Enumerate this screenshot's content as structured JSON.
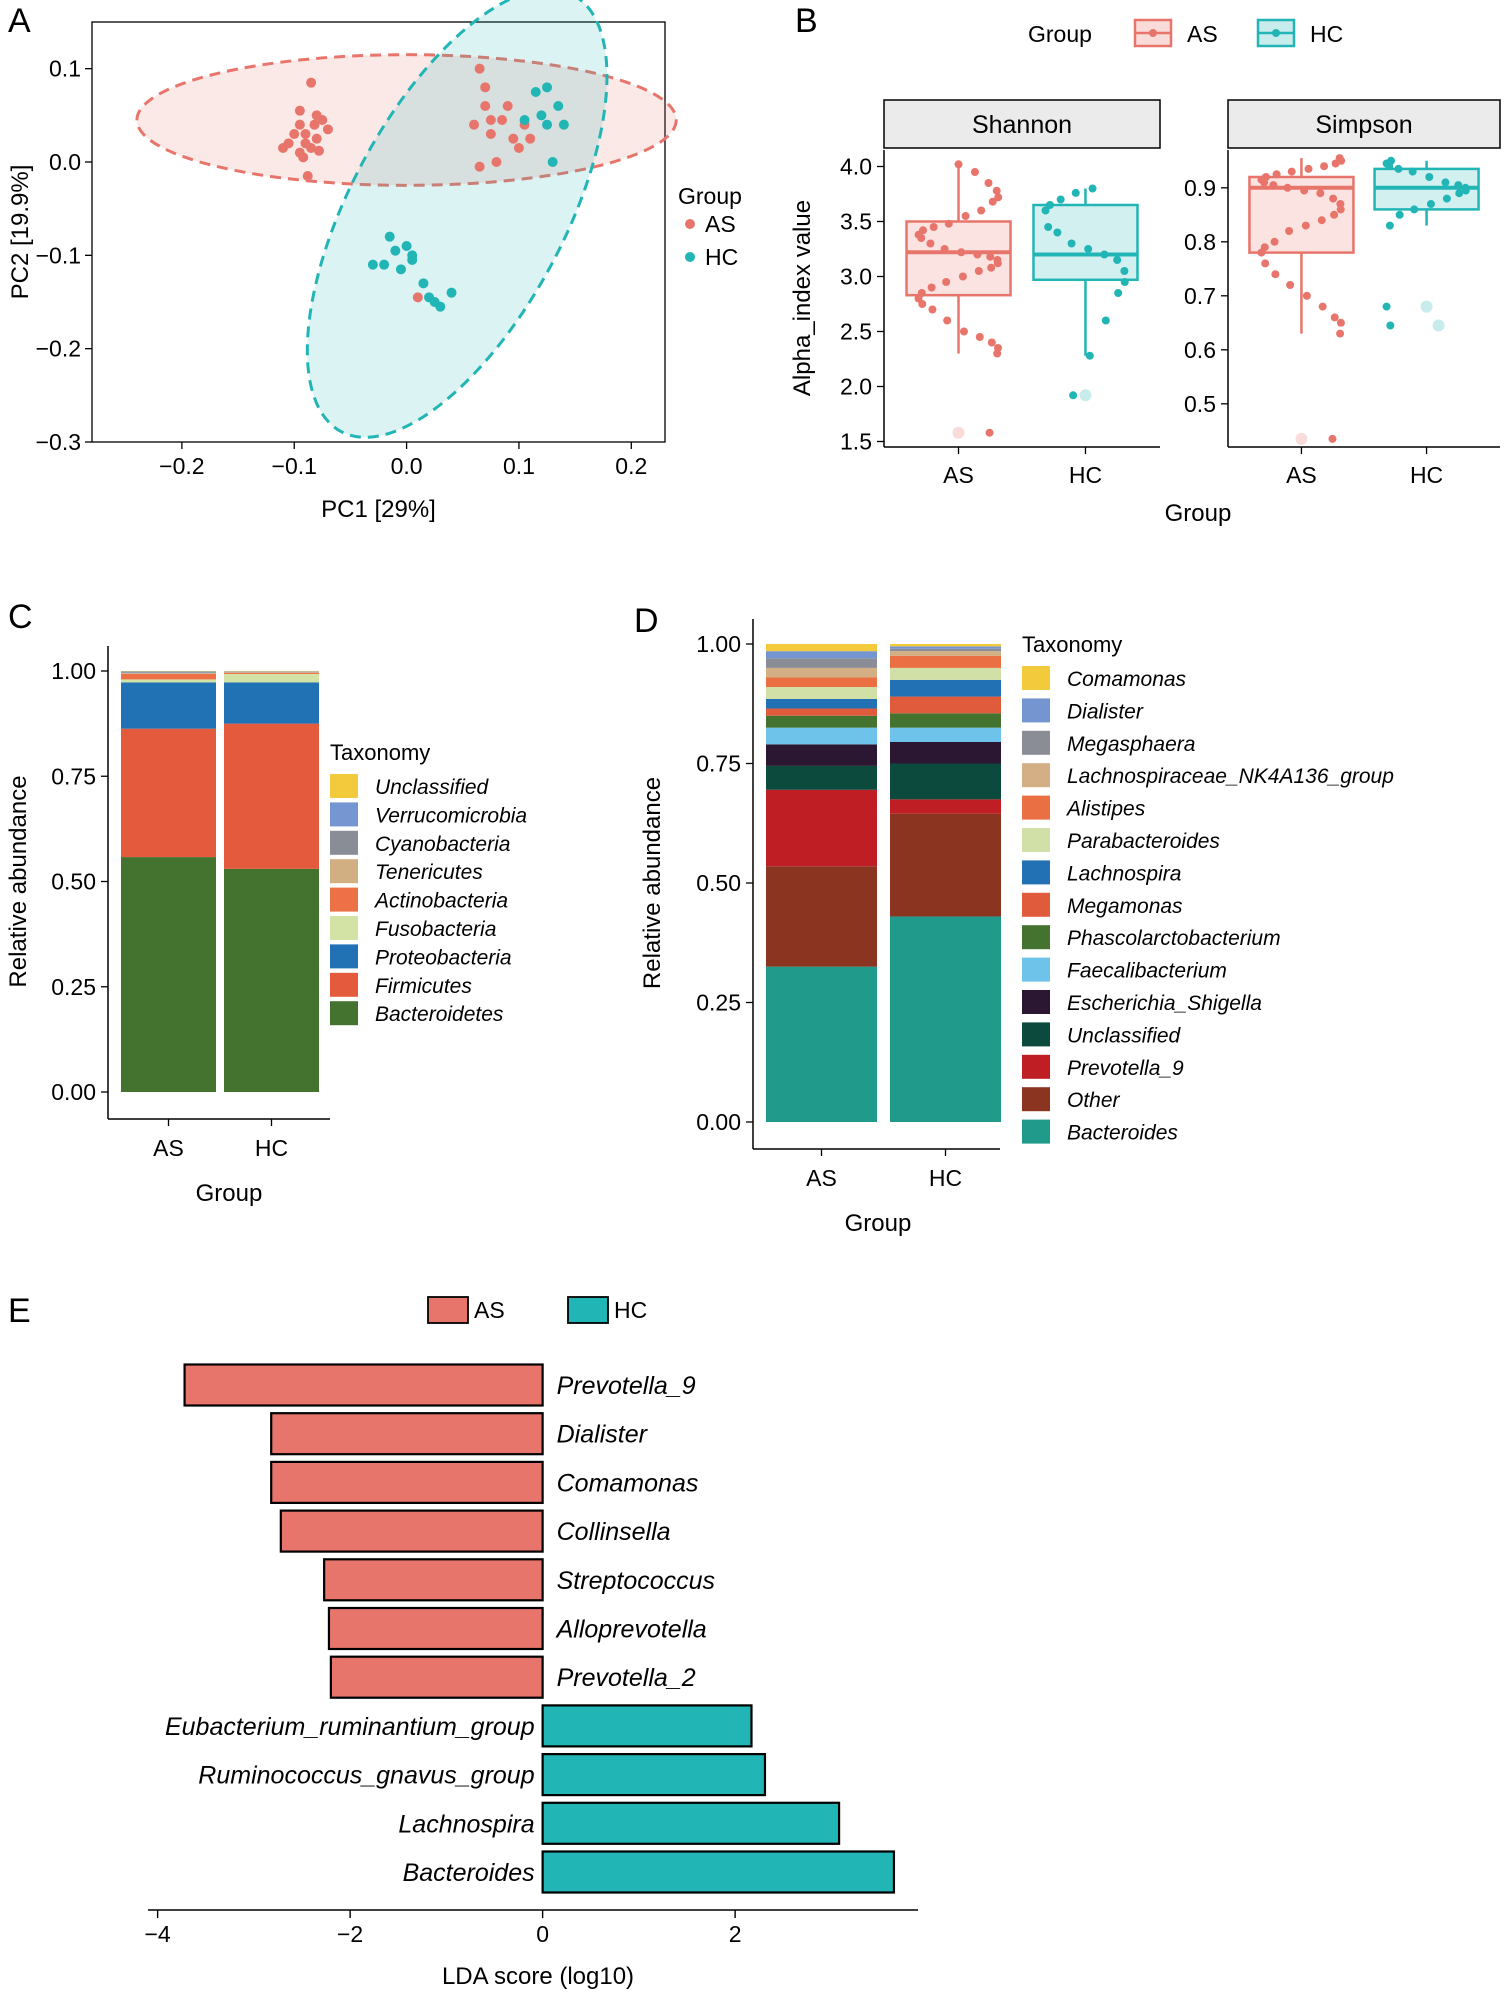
{
  "colors": {
    "AS": "#E8756B",
    "HC": "#22B5B5"
  },
  "chart_data": [
    {
      "panel": "A",
      "type": "scatter",
      "xlabel": "PC1 [29%]",
      "ylabel": "PC2 [19.9%]",
      "xlim": [
        -0.28,
        0.23
      ],
      "ylim": [
        -0.3,
        0.15
      ],
      "xticks": [
        -0.2,
        -0.1,
        0.0,
        0.1,
        0.2
      ],
      "yticks": [
        0.1,
        0.0,
        -0.1,
        -0.2,
        -0.3
      ],
      "xtick_labels": [
        "−0.2",
        "−0.1",
        "0.0",
        "0.1",
        "0.2"
      ],
      "ytick_labels": [
        "0.1",
        "0.0",
        "−0.1",
        "−0.2",
        "−0.3"
      ],
      "legend": {
        "title": "Group",
        "entries": [
          "AS",
          "HC"
        ],
        "position": "right"
      },
      "ellipses": [
        {
          "group": "AS",
          "cx": 0.0,
          "cy": 0.045,
          "rx": 0.24,
          "ry": 0.07,
          "angle": 0
        },
        {
          "group": "HC",
          "cx": 0.045,
          "cy": -0.055,
          "rx": 0.22,
          "ry": 0.115,
          "angle": -62
        }
      ],
      "series": [
        {
          "name": "AS",
          "points": [
            [
              -0.095,
              0.04
            ],
            [
              -0.082,
              0.04
            ],
            [
              -0.085,
              0.015
            ],
            [
              -0.095,
              0.01
            ],
            [
              -0.08,
              0.025
            ],
            [
              -0.09,
              0.03
            ],
            [
              -0.075,
              0.045
            ],
            [
              -0.07,
              0.035
            ],
            [
              -0.085,
              0.085
            ],
            [
              -0.1,
              0.03
            ],
            [
              -0.11,
              0.015
            ],
            [
              -0.09,
              0.02
            ],
            [
              -0.078,
              0.012
            ],
            [
              -0.092,
              0.005
            ],
            [
              -0.088,
              -0.015
            ],
            [
              -0.095,
              0.055
            ],
            [
              -0.08,
              0.05
            ],
            [
              -0.105,
              0.02
            ],
            [
              0.065,
              0.1
            ],
            [
              0.07,
              0.06
            ],
            [
              0.06,
              0.04
            ],
            [
              0.075,
              0.045
            ],
            [
              0.085,
              0.045
            ],
            [
              0.095,
              0.025
            ],
            [
              0.065,
              -0.005
            ],
            [
              0.08,
              0.0
            ],
            [
              0.09,
              0.06
            ],
            [
              0.105,
              0.04
            ],
            [
              0.11,
              0.025
            ],
            [
              0.1,
              0.015
            ],
            [
              0.07,
              0.08
            ],
            [
              0.075,
              0.03
            ],
            [
              0.01,
              -0.145
            ]
          ]
        },
        {
          "name": "HC",
          "points": [
            [
              0.115,
              0.075
            ],
            [
              0.125,
              0.04
            ],
            [
              0.135,
              0.06
            ],
            [
              0.14,
              0.04
            ],
            [
              0.125,
              0.08
            ],
            [
              0.105,
              0.045
            ],
            [
              0.12,
              0.05
            ],
            [
              0.13,
              0.0
            ],
            [
              -0.015,
              -0.08
            ],
            [
              -0.02,
              -0.11
            ],
            [
              -0.005,
              -0.115
            ],
            [
              0.005,
              -0.105
            ],
            [
              -0.03,
              -0.11
            ],
            [
              0.0,
              -0.09
            ],
            [
              0.02,
              -0.145
            ],
            [
              0.03,
              -0.155
            ],
            [
              0.04,
              -0.14
            ],
            [
              0.015,
              -0.13
            ],
            [
              0.005,
              -0.1
            ],
            [
              -0.01,
              -0.095
            ],
            [
              0.025,
              -0.15
            ]
          ]
        }
      ]
    },
    {
      "panel": "B",
      "type": "box",
      "legend": {
        "title": "Group",
        "entries": [
          "AS",
          "HC"
        ],
        "position": "top"
      },
      "xlabel": "Group",
      "ylabel": "Alpha_index value",
      "facets": [
        {
          "title": "Shannon",
          "ylim": [
            1.45,
            4.15
          ],
          "yticks": [
            1.5,
            2.0,
            2.5,
            3.0,
            3.5,
            4.0
          ],
          "ytick_labels": [
            "1.5",
            "2.0",
            "2.5",
            "3.0",
            "3.5",
            "4.0"
          ],
          "categories": [
            "AS",
            "HC"
          ],
          "boxes": [
            {
              "group": "AS",
              "min": 2.3,
              "q1": 2.83,
              "median": 3.22,
              "q3": 3.5,
              "max": 4.02,
              "outliers": [
                1.58
              ],
              "points": [
                4.02,
                3.95,
                3.85,
                3.78,
                3.72,
                3.68,
                3.6,
                3.55,
                3.48,
                3.45,
                3.42,
                3.38,
                3.35,
                3.3,
                3.25,
                3.22,
                3.2,
                3.18,
                3.15,
                3.12,
                3.08,
                3.05,
                3.0,
                2.95,
                2.9,
                2.85,
                2.8,
                2.75,
                2.7,
                2.6,
                2.5,
                2.45,
                2.4,
                2.35,
                2.3,
                1.58
              ]
            },
            {
              "group": "HC",
              "min": 2.28,
              "q1": 2.97,
              "median": 3.2,
              "q3": 3.65,
              "max": 3.8,
              "outliers": [
                1.92
              ],
              "points": [
                3.8,
                3.76,
                3.7,
                3.65,
                3.6,
                3.45,
                3.4,
                3.3,
                3.25,
                3.2,
                3.15,
                3.05,
                2.95,
                2.85,
                2.6,
                2.28,
                1.92
              ]
            }
          ]
        },
        {
          "title": "Simpson",
          "ylim": [
            0.42,
            0.97
          ],
          "yticks": [
            0.5,
            0.6,
            0.7,
            0.8,
            0.9
          ],
          "ytick_labels": [
            "0.5",
            "0.6",
            "0.7",
            "0.8",
            "0.9"
          ],
          "categories": [
            "AS",
            "HC"
          ],
          "boxes": [
            {
              "group": "AS",
              "min": 0.63,
              "q1": 0.78,
              "median": 0.9,
              "q3": 0.92,
              "max": 0.955,
              "outliers": [
                0.435
              ],
              "points": [
                0.955,
                0.95,
                0.945,
                0.94,
                0.935,
                0.93,
                0.925,
                0.92,
                0.915,
                0.91,
                0.905,
                0.9,
                0.895,
                0.89,
                0.88,
                0.87,
                0.86,
                0.85,
                0.84,
                0.83,
                0.82,
                0.8,
                0.79,
                0.78,
                0.76,
                0.74,
                0.72,
                0.7,
                0.68,
                0.66,
                0.65,
                0.63,
                0.435
              ]
            },
            {
              "group": "HC",
              "min": 0.83,
              "q1": 0.86,
              "median": 0.9,
              "q3": 0.935,
              "max": 0.95,
              "outliers": [
                0.68,
                0.645
              ],
              "points": [
                0.95,
                0.945,
                0.94,
                0.935,
                0.93,
                0.92,
                0.91,
                0.905,
                0.9,
                0.895,
                0.89,
                0.88,
                0.87,
                0.86,
                0.85,
                0.83,
                0.68,
                0.645
              ]
            }
          ]
        }
      ]
    },
    {
      "panel": "C",
      "type": "stacked_bar",
      "xlabel": "Group",
      "ylabel": "Relative abundance",
      "categories": [
        "AS",
        "HC"
      ],
      "ylim": [
        0,
        1.0
      ],
      "yticks": [
        0,
        0.25,
        0.5,
        0.75,
        1.0
      ],
      "ytick_labels": [
        "0.00",
        "0.25",
        "0.50",
        "0.75",
        "1.00"
      ],
      "legend": {
        "title": "Taxonomy",
        "position": "right"
      },
      "legend_order": [
        "Unclassified",
        "Verrucomicrobia",
        "Cyanobacteria",
        "Tenericutes",
        "Actinobacteria",
        "Fusobacteria",
        "Proteobacteria",
        "Firmicutes",
        "Bacteroidetes"
      ],
      "series": [
        {
          "name": "Bacteroidetes",
          "color": "#44732F",
          "values": [
            0.558,
            0.53
          ]
        },
        {
          "name": "Firmicutes",
          "color": "#E35A3D",
          "values": [
            0.305,
            0.345
          ]
        },
        {
          "name": "Proteobacteria",
          "color": "#2171B5",
          "values": [
            0.11,
            0.098
          ]
        },
        {
          "name": "Fusobacteria",
          "color": "#D3E3A5",
          "values": [
            0.007,
            0.02
          ]
        },
        {
          "name": "Actinobacteria",
          "color": "#ED7146",
          "values": [
            0.013,
            0.003
          ]
        },
        {
          "name": "Tenericutes",
          "color": "#D2AF83",
          "values": [
            0.002,
            0.001
          ]
        },
        {
          "name": "Cyanobacteria",
          "color": "#898D96",
          "values": [
            0.002,
            0.001
          ]
        },
        {
          "name": "Verrucomicrobia",
          "color": "#7596D0",
          "values": [
            0.002,
            0.001
          ]
        },
        {
          "name": "Unclassified",
          "color": "#F2CA3B",
          "values": [
            0.001,
            0.001
          ]
        }
      ]
    },
    {
      "panel": "D",
      "type": "stacked_bar",
      "xlabel": "Group",
      "ylabel": "Relative abundance",
      "categories": [
        "AS",
        "HC"
      ],
      "ylim": [
        0,
        1.0
      ],
      "yticks": [
        0,
        0.25,
        0.5,
        0.75,
        1.0
      ],
      "ytick_labels": [
        "0.00",
        "0.25",
        "0.50",
        "0.75",
        "1.00"
      ],
      "legend": {
        "title": "Taxonomy",
        "position": "right"
      },
      "legend_order": [
        "Comamonas",
        "Dialister",
        "Megasphaera",
        "Lachnospiraceae_NK4A136_group",
        "Alistipes",
        "Parabacteroides",
        "Lachnospira",
        "Megamonas",
        "Phascolarctobacterium",
        "Faecalibacterium",
        "Escherichia_Shigella",
        "Unclassified",
        "Prevotella_9",
        "Other",
        "Bacteroides"
      ],
      "series": [
        {
          "name": "Bacteroides",
          "color": "#209A8B",
          "values": [
            0.325,
            0.43
          ]
        },
        {
          "name": "Other",
          "color": "#8B3420",
          "values": [
            0.21,
            0.215
          ]
        },
        {
          "name": "Prevotella_9",
          "color": "#BE1E24",
          "values": [
            0.16,
            0.03
          ]
        },
        {
          "name": "Unclassified",
          "color": "#0C4A3E",
          "values": [
            0.05,
            0.075
          ]
        },
        {
          "name": "Escherichia_Shigella",
          "color": "#2B1731",
          "values": [
            0.045,
            0.045
          ]
        },
        {
          "name": "Faecalibacterium",
          "color": "#6EC3EA",
          "values": [
            0.035,
            0.03
          ]
        },
        {
          "name": "Phascolarctobacterium",
          "color": "#43732F",
          "values": [
            0.025,
            0.03
          ]
        },
        {
          "name": "Megamonas",
          "color": "#E05A3C",
          "values": [
            0.015,
            0.035
          ]
        },
        {
          "name": "Lachnospira",
          "color": "#2371B5",
          "values": [
            0.02,
            0.035
          ]
        },
        {
          "name": "Parabacteroides",
          "color": "#D0E0A6",
          "values": [
            0.025,
            0.025
          ]
        },
        {
          "name": "Alistipes",
          "color": "#EA7044",
          "values": [
            0.02,
            0.025
          ]
        },
        {
          "name": "Lachnospiraceae_NK4A136_group",
          "color": "#D4AF86",
          "values": [
            0.02,
            0.01
          ]
        },
        {
          "name": "Megasphaera",
          "color": "#8A8D95",
          "values": [
            0.02,
            0.005
          ]
        },
        {
          "name": "Dialister",
          "color": "#7595D0",
          "values": [
            0.015,
            0.005
          ]
        },
        {
          "name": "Comamonas",
          "color": "#F2CA3B",
          "values": [
            0.015,
            0.005
          ]
        }
      ]
    },
    {
      "panel": "E",
      "type": "bar",
      "orientation": "horizontal",
      "xlabel": "LDA score (log10)",
      "xlim": [
        -4.1,
        3.9
      ],
      "xticks": [
        -4,
        -2,
        0,
        2
      ],
      "xtick_labels": [
        "−4",
        "−2",
        "0",
        "2"
      ],
      "legend": {
        "entries": [
          "AS",
          "HC"
        ],
        "position": "top"
      },
      "categories": [
        "Prevotella_9",
        "Dialister",
        "Comamonas",
        "Collinsella",
        "Streptococcus",
        "Alloprevotella",
        "Prevotella_2",
        "Eubacterium_ruminantium_group",
        "Ruminococcus_gnavus_group",
        "Lachnospira",
        "Bacteroides"
      ],
      "values": [
        -3.72,
        -2.82,
        -2.82,
        -2.72,
        -2.27,
        -2.22,
        -2.2,
        2.17,
        2.31,
        3.08,
        3.65
      ],
      "groups": [
        "AS",
        "AS",
        "AS",
        "AS",
        "AS",
        "AS",
        "AS",
        "HC",
        "HC",
        "HC",
        "HC"
      ]
    }
  ],
  "panel_labels": [
    "A",
    "B",
    "C",
    "D",
    "E"
  ],
  "group_legend_title": "Group",
  "group_names": [
    "AS",
    "HC"
  ],
  "taxonomy_legend_title": "Taxonomy"
}
